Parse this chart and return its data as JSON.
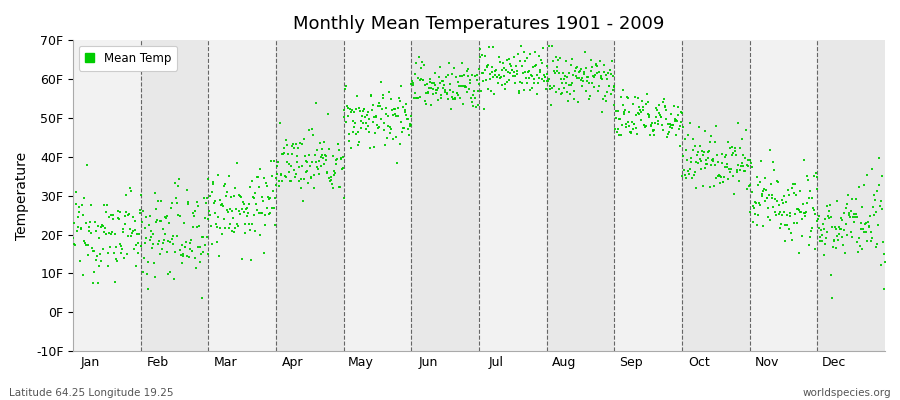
{
  "title": "Monthly Mean Temperatures 1901 - 2009",
  "ylabel": "Temperature",
  "xlabel_months": [
    "Jan",
    "Feb",
    "Mar",
    "Apr",
    "May",
    "Jun",
    "Jul",
    "Aug",
    "Sep",
    "Oct",
    "Nov",
    "Dec"
  ],
  "footer_left": "Latitude 64.25 Longitude 19.25",
  "footer_right": "worldspecies.org",
  "legend_label": "Mean Temp",
  "ylim": [
    -10,
    70
  ],
  "yticks": [
    -10,
    0,
    10,
    20,
    30,
    40,
    50,
    60,
    70
  ],
  "ytick_labels": [
    "-10F",
    "0F",
    "10F",
    "20F",
    "30F",
    "40F",
    "50F",
    "60F",
    "70F"
  ],
  "dot_color": "#00cc00",
  "background_color": "#ffffff",
  "band_color_odd": "#f2f2f2",
  "band_color_even": "#e8e8e8",
  "n_years": 109,
  "month_means_C": [
    -6.5,
    -6.5,
    -2.5,
    3.5,
    10.0,
    14.5,
    16.5,
    15.5,
    10.0,
    4.0,
    -2.0,
    -5.5
  ],
  "month_stds_C": [
    3.0,
    3.5,
    3.0,
    2.2,
    2.2,
    1.8,
    1.8,
    1.8,
    1.8,
    2.2,
    3.0,
    3.0
  ],
  "seed": 12345
}
